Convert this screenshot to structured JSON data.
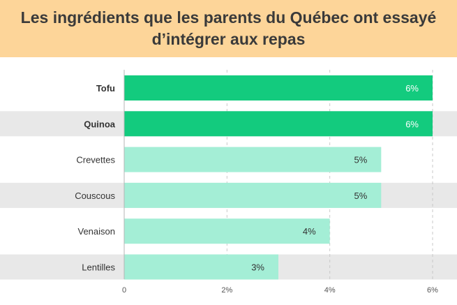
{
  "chart_data": {
    "type": "bar",
    "orientation": "horizontal",
    "title_lines": [
      "Les ingrédients que les parents du Québec ont essayé",
      "d’intégrer aux repas"
    ],
    "categories": [
      "Tofu",
      "Quinoa",
      "Crevettes",
      "Couscous",
      "Venaison",
      "Lentilles"
    ],
    "values": [
      6,
      6,
      5,
      5,
      4,
      3
    ],
    "value_labels": [
      "6%",
      "6%",
      "5%",
      "5%",
      "4%",
      "3%"
    ],
    "highlighted": [
      true,
      true,
      false,
      false,
      false,
      false
    ],
    "xlim": [
      0,
      6
    ],
    "x_ticks": [
      0,
      2,
      4,
      6
    ],
    "x_tick_labels": [
      "0",
      "2%",
      "4%",
      "6%"
    ],
    "grid": "vertical-dashed",
    "colors": {
      "highlight": "#13cb7e",
      "normal": "#a4eed6",
      "band": "#e8e8e8",
      "header": "#fdd599"
    }
  }
}
